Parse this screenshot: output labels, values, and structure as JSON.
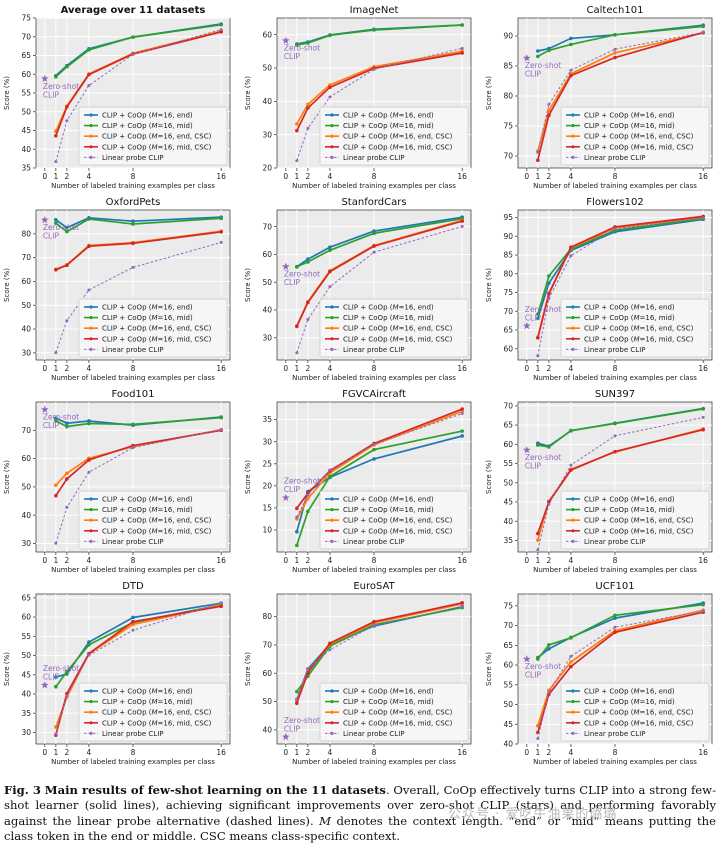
{
  "figure": {
    "xlabel": "Number of labeled training examples per class",
    "ylabel": "Score (%)",
    "zero_shot_label": "Zero-shot\nCLIP",
    "series_styles": [
      {
        "name": "CLIP + CoOp (M=16, end)",
        "legend_parts": [
          "CLIP + CoOp (",
          "M",
          "=16, end)"
        ],
        "color": "#1f77b4",
        "dashed": false
      },
      {
        "name": "CLIP + CoOp (M=16, mid)",
        "legend_parts": [
          "CLIP + CoOp (",
          "M",
          "=16, mid)"
        ],
        "color": "#2ca02c",
        "dashed": false
      },
      {
        "name": "CLIP + CoOp (M=16, end, CSC)",
        "legend_parts": [
          "CLIP + CoOp (",
          "M",
          "=16, end, CSC)"
        ],
        "color": "#ff7f0e",
        "dashed": false
      },
      {
        "name": "CLIP + CoOp (M=16, mid, CSC)",
        "legend_parts": [
          "CLIP + CoOp (",
          "M",
          "=16, mid, CSC)"
        ],
        "color": "#d62728",
        "dashed": false
      },
      {
        "name": "Linear probe CLIP",
        "legend_parts": [
          "Linear probe CLIP"
        ],
        "color": "#9467bd",
        "dashed": true
      }
    ]
  },
  "chart_data": [
    {
      "type": "line",
      "title": "Average over 11 datasets",
      "bold_title": true,
      "x": [
        1,
        2,
        4,
        8,
        16
      ],
      "xticks": [
        0,
        1,
        2,
        4,
        8,
        16
      ],
      "ylim": [
        35,
        75
      ],
      "yticks": [
        35,
        40,
        45,
        50,
        55,
        60,
        65,
        70,
        75
      ],
      "zero_shot": 58.8,
      "series": [
        {
          "name": "CLIP + CoOp (M=16, end)",
          "values": [
            59.6,
            62.3,
            66.8,
            69.9,
            73.4
          ]
        },
        {
          "name": "CLIP + CoOp (M=16, mid)",
          "values": [
            59.3,
            62.0,
            66.5,
            69.9,
            73.2
          ]
        },
        {
          "name": "CLIP + CoOp (M=16, end, CSC)",
          "values": [
            44.8,
            51.5,
            60.1,
            65.6,
            71.5
          ]
        },
        {
          "name": "CLIP + CoOp (M=16, mid, CSC)",
          "values": [
            43.6,
            51.3,
            59.9,
            65.4,
            71.3
          ]
        },
        {
          "name": "Linear probe CLIP",
          "values": [
            36.7,
            47.6,
            57.0,
            65.3,
            71.9
          ]
        }
      ]
    },
    {
      "type": "line",
      "title": "ImageNet",
      "bold_title": false,
      "x": [
        1,
        2,
        4,
        8,
        16
      ],
      "xticks": [
        0,
        1,
        2,
        4,
        8,
        16
      ],
      "ylim": [
        20,
        65
      ],
      "yticks": [
        20,
        30,
        40,
        50,
        60
      ],
      "zero_shot": 58.2,
      "series": [
        {
          "name": "CLIP + CoOp (M=16, end)",
          "values": [
            57.2,
            57.8,
            59.9,
            61.6,
            62.9
          ]
        },
        {
          "name": "CLIP + CoOp (M=16, mid)",
          "values": [
            56.9,
            57.5,
            59.8,
            61.4,
            62.9
          ]
        },
        {
          "name": "CLIP + CoOp (M=16, end, CSC)",
          "values": [
            33.2,
            39.1,
            44.9,
            50.4,
            55.0
          ]
        },
        {
          "name": "CLIP + CoOp (M=16, mid, CSC)",
          "values": [
            31.2,
            38.0,
            44.2,
            49.9,
            54.5
          ]
        },
        {
          "name": "Linear probe CLIP",
          "values": [
            22.2,
            31.9,
            41.3,
            49.6,
            55.9
          ]
        }
      ]
    },
    {
      "type": "line",
      "title": "Caltech101",
      "bold_title": false,
      "x": [
        1,
        2,
        4,
        8,
        16
      ],
      "xticks": [
        0,
        1,
        2,
        4,
        8,
        16
      ],
      "ylim": [
        68,
        93
      ],
      "yticks": [
        70,
        75,
        80,
        85,
        90
      ],
      "zero_shot": 86.3,
      "series": [
        {
          "name": "CLIP + CoOp (M=16, end)",
          "values": [
            87.5,
            87.9,
            89.6,
            90.2,
            91.8
          ]
        },
        {
          "name": "CLIP + CoOp (M=16, mid)",
          "values": [
            86.6,
            87.6,
            88.6,
            90.2,
            91.6
          ]
        },
        {
          "name": "CLIP + CoOp (M=16, end, CSC)",
          "values": [
            70.8,
            77.6,
            83.7,
            87.2,
            90.5
          ]
        },
        {
          "name": "CLIP + CoOp (M=16, mid, CSC)",
          "values": [
            69.3,
            76.8,
            83.4,
            86.4,
            90.6
          ]
        },
        {
          "name": "Linear probe CLIP",
          "values": [
            70.6,
            78.6,
            84.3,
            87.8,
            90.6
          ]
        }
      ]
    },
    {
      "type": "line",
      "title": "OxfordPets",
      "bold_title": false,
      "x": [
        1,
        2,
        4,
        8,
        16
      ],
      "xticks": [
        0,
        1,
        2,
        4,
        8,
        16
      ],
      "ylim": [
        27,
        90
      ],
      "yticks": [
        30,
        40,
        50,
        60,
        70,
        80
      ],
      "zero_shot": 85.8,
      "series": [
        {
          "name": "CLIP + CoOp (M=16, end)",
          "values": [
            85.9,
            82.6,
            86.7,
            85.3,
            87.0
          ]
        },
        {
          "name": "CLIP + CoOp (M=16, mid)",
          "values": [
            84.5,
            80.9,
            86.2,
            84.1,
            86.5
          ]
        },
        {
          "name": "CLIP + CoOp (M=16, end, CSC)",
          "values": [
            65.1,
            67.0,
            75.1,
            76.3,
            81.1
          ]
        },
        {
          "name": "CLIP + CoOp (M=16, mid, CSC)",
          "values": [
            64.9,
            66.8,
            74.8,
            76.0,
            80.8
          ]
        },
        {
          "name": "Linear probe CLIP",
          "values": [
            30.1,
            43.5,
            56.4,
            65.9,
            76.4
          ]
        }
      ]
    },
    {
      "type": "line",
      "title": "StanfordCars",
      "bold_title": false,
      "x": [
        1,
        2,
        4,
        8,
        16
      ],
      "xticks": [
        0,
        1,
        2,
        4,
        8,
        16
      ],
      "ylim": [
        22,
        76
      ],
      "yticks": [
        30,
        40,
        50,
        60,
        70
      ],
      "zero_shot": 55.6,
      "series": [
        {
          "name": "CLIP + CoOp (M=16, end)",
          "values": [
            55.6,
            58.3,
            62.6,
            68.4,
            73.4
          ]
        },
        {
          "name": "CLIP + CoOp (M=16, mid)",
          "values": [
            55.5,
            57.3,
            61.5,
            67.6,
            72.9
          ]
        },
        {
          "name": "CLIP + CoOp (M=16, end, CSC)",
          "values": [
            34.3,
            43.0,
            54.1,
            63.2,
            72.3
          ]
        },
        {
          "name": "CLIP + CoOp (M=16, mid, CSC)",
          "values": [
            34.1,
            42.7,
            53.8,
            63.0,
            72.0
          ]
        },
        {
          "name": "Linear probe CLIP",
          "values": [
            24.6,
            36.6,
            48.4,
            60.8,
            70.1
          ]
        }
      ]
    },
    {
      "type": "line",
      "title": "Flowers102",
      "bold_title": false,
      "x": [
        1,
        2,
        4,
        8,
        16
      ],
      "xticks": [
        0,
        1,
        2,
        4,
        8,
        16
      ],
      "ylim": [
        57,
        97
      ],
      "yticks": [
        60,
        65,
        70,
        75,
        80,
        85,
        90,
        95
      ],
      "zero_shot": 66.1,
      "series": [
        {
          "name": "CLIP + CoOp (M=16, end)",
          "values": [
            68.1,
            77.5,
            86.2,
            91.2,
            94.5
          ]
        },
        {
          "name": "CLIP + CoOp (M=16, mid)",
          "values": [
            69.2,
            79.4,
            86.6,
            91.6,
            94.7
          ]
        },
        {
          "name": "CLIP + CoOp (M=16, end, CSC)",
          "values": [
            63.1,
            74.9,
            86.9,
            92.2,
            95.1
          ]
        },
        {
          "name": "CLIP + CoOp (M=16, mid, CSC)",
          "values": [
            62.9,
            74.6,
            87.1,
            92.5,
            95.3
          ]
        },
        {
          "name": "Linear probe CLIP",
          "values": [
            58.1,
            73.4,
            84.8,
            92.0,
            94.9
          ]
        }
      ]
    },
    {
      "type": "line",
      "title": "Food101",
      "bold_title": false,
      "x": [
        1,
        2,
        4,
        8,
        16
      ],
      "xticks": [
        0,
        1,
        2,
        4,
        8,
        16
      ],
      "ylim": [
        27,
        80
      ],
      "yticks": [
        30,
        40,
        50,
        60,
        70
      ],
      "zero_shot": 77.3,
      "series": [
        {
          "name": "CLIP + CoOp (M=16, end)",
          "values": [
            74.3,
            72.5,
            73.3,
            71.8,
            74.7
          ]
        },
        {
          "name": "CLIP + CoOp (M=16, mid)",
          "values": [
            73.4,
            71.3,
            72.4,
            72.1,
            74.5
          ]
        },
        {
          "name": "CLIP + CoOp (M=16, end, CSC)",
          "values": [
            50.6,
            54.8,
            60.1,
            64.2,
            70.2
          ]
        },
        {
          "name": "CLIP + CoOp (M=16, mid, CSC)",
          "values": [
            46.9,
            52.8,
            59.5,
            64.6,
            70.0
          ]
        },
        {
          "name": "Linear probe CLIP",
          "values": [
            30.1,
            42.8,
            55.2,
            63.9,
            70.2
          ]
        }
      ]
    },
    {
      "type": "line",
      "title": "FGVCAircraft",
      "bold_title": false,
      "x": [
        1,
        2,
        4,
        8,
        16
      ],
      "xticks": [
        0,
        1,
        2,
        4,
        8,
        16
      ],
      "ylim": [
        5,
        39
      ],
      "yticks": [
        10,
        15,
        20,
        25,
        30,
        35
      ],
      "zero_shot": 17.3,
      "series": [
        {
          "name": "CLIP + CoOp (M=16, end)",
          "values": [
            9.6,
            18.7,
            21.9,
            26.1,
            31.3
          ]
        },
        {
          "name": "CLIP + CoOp (M=16, mid)",
          "values": [
            6.5,
            14.2,
            22.1,
            28.2,
            32.4
          ]
        },
        {
          "name": "CLIP + CoOp (M=16, end, CSC)",
          "values": [
            12.5,
            17.1,
            22.9,
            29.3,
            36.9
          ]
        },
        {
          "name": "CLIP + CoOp (M=16, mid, CSC)",
          "values": [
            14.9,
            18.3,
            23.4,
            29.6,
            37.4
          ]
        },
        {
          "name": "Linear probe CLIP",
          "values": [
            12.9,
            17.9,
            23.6,
            29.4,
            36.4
          ]
        }
      ]
    },
    {
      "type": "line",
      "title": "SUN397",
      "bold_title": false,
      "x": [
        1,
        2,
        4,
        8,
        16
      ],
      "xticks": [
        0,
        1,
        2,
        4,
        8,
        16
      ],
      "ylim": [
        32,
        71
      ],
      "yticks": [
        35,
        40,
        45,
        50,
        55,
        60,
        65,
        70
      ],
      "zero_shot": 58.5,
      "series": [
        {
          "name": "CLIP + CoOp (M=16, end)",
          "values": [
            60.3,
            59.5,
            63.5,
            65.5,
            69.3
          ]
        },
        {
          "name": "CLIP + CoOp (M=16, mid)",
          "values": [
            59.8,
            59.3,
            63.6,
            65.4,
            69.2
          ]
        },
        {
          "name": "CLIP + CoOp (M=16, end, CSC)",
          "values": [
            35.1,
            45.2,
            53.5,
            58.0,
            64.0
          ]
        },
        {
          "name": "CLIP + CoOp (M=16, mid, CSC)",
          "values": [
            36.8,
            45.0,
            53.3,
            58.1,
            63.8
          ]
        },
        {
          "name": "Linear probe CLIP",
          "values": [
            32.6,
            44.4,
            54.6,
            62.2,
            67.0
          ]
        }
      ]
    },
    {
      "type": "line",
      "title": "DTD",
      "bold_title": false,
      "x": [
        1,
        2,
        4,
        8,
        16
      ],
      "xticks": [
        0,
        1,
        2,
        4,
        8,
        16
      ],
      "ylim": [
        27,
        66
      ],
      "yticks": [
        30,
        35,
        40,
        45,
        50,
        55,
        60,
        65
      ],
      "zero_shot": 42.3,
      "series": [
        {
          "name": "CLIP + CoOp (M=16, end)",
          "values": [
            44.4,
            45.2,
            53.5,
            59.9,
            63.6
          ]
        },
        {
          "name": "CLIP + CoOp (M=16, mid)",
          "values": [
            41.9,
            45.8,
            52.8,
            58.6,
            63.2
          ]
        },
        {
          "name": "CLIP + CoOp (M=16, end, CSC)",
          "values": [
            31.4,
            39.2,
            50.4,
            58.1,
            63.1
          ]
        },
        {
          "name": "CLIP + CoOp (M=16, mid, CSC)",
          "values": [
            29.3,
            40.1,
            50.5,
            58.8,
            62.8
          ]
        },
        {
          "name": "Linear probe CLIP",
          "values": [
            29.6,
            39.5,
            50.1,
            56.6,
            63.7
          ]
        }
      ]
    },
    {
      "type": "line",
      "title": "EuroSAT",
      "bold_title": false,
      "x": [
        1,
        2,
        4,
        8,
        16
      ],
      "xticks": [
        0,
        1,
        2,
        4,
        8,
        16
      ],
      "ylim": [
        35,
        88
      ],
      "yticks": [
        40,
        50,
        60,
        70,
        80
      ],
      "zero_shot": 37.5,
      "series": [
        {
          "name": "CLIP + CoOp (M=16, end)",
          "values": [
            50.6,
            61.5,
            70.2,
            76.7,
            83.5
          ]
        },
        {
          "name": "CLIP + CoOp (M=16, mid)",
          "values": [
            53.5,
            59.0,
            69.6,
            77.1,
            83.2
          ]
        },
        {
          "name": "CLIP + CoOp (M=16, end, CSC)",
          "values": [
            50.0,
            60.5,
            70.3,
            77.8,
            84.5
          ]
        },
        {
          "name": "CLIP + CoOp (M=16, mid, CSC)",
          "values": [
            49.4,
            60.2,
            70.6,
            78.2,
            84.9
          ]
        },
        {
          "name": "Linear probe CLIP",
          "values": [
            51.0,
            61.6,
            68.3,
            76.9,
            83.6
          ]
        }
      ]
    },
    {
      "type": "line",
      "title": "UCF101",
      "bold_title": false,
      "x": [
        1,
        2,
        4,
        8,
        16
      ],
      "xticks": [
        0,
        1,
        2,
        4,
        8,
        16
      ],
      "ylim": [
        40,
        78
      ],
      "yticks": [
        40,
        45,
        50,
        55,
        60,
        65,
        70,
        75
      ],
      "zero_shot": 61.5,
      "series": [
        {
          "name": "CLIP + CoOp (M=16, end)",
          "values": [
            61.9,
            64.1,
            67.0,
            71.9,
            75.7
          ]
        },
        {
          "name": "CLIP + CoOp (M=16, mid)",
          "values": [
            61.5,
            65.1,
            66.9,
            72.6,
            75.3
          ]
        },
        {
          "name": "CLIP + CoOp (M=16, end, CSC)",
          "values": [
            44.6,
            53.6,
            60.8,
            68.7,
            73.9
          ]
        },
        {
          "name": "CLIP + CoOp (M=16, mid, CSC)",
          "values": [
            42.9,
            52.6,
            59.6,
            68.3,
            73.4
          ]
        },
        {
          "name": "Linear probe CLIP",
          "values": [
            41.4,
            53.1,
            62.2,
            69.6,
            73.7
          ]
        }
      ]
    }
  ],
  "caption": {
    "label": "Fig. 3",
    "bold_title": "Main results of few-shot learning on the 11 datasets",
    "text_1": ". Overall, CoOp effectively turns CLIP into a strong few-shot learner (solid lines), achieving significant improvements over zero-shot CLIP (stars) and performing favorably against the linear probe alternative (dashed lines). ",
    "m_symbol": "M",
    "text_2": " denotes the context length. “end” or “mid” means putting the class token in the end or middle. CSC means class-specific context."
  },
  "watermark": "公众号 · 爱吃牛油果的璐璐"
}
